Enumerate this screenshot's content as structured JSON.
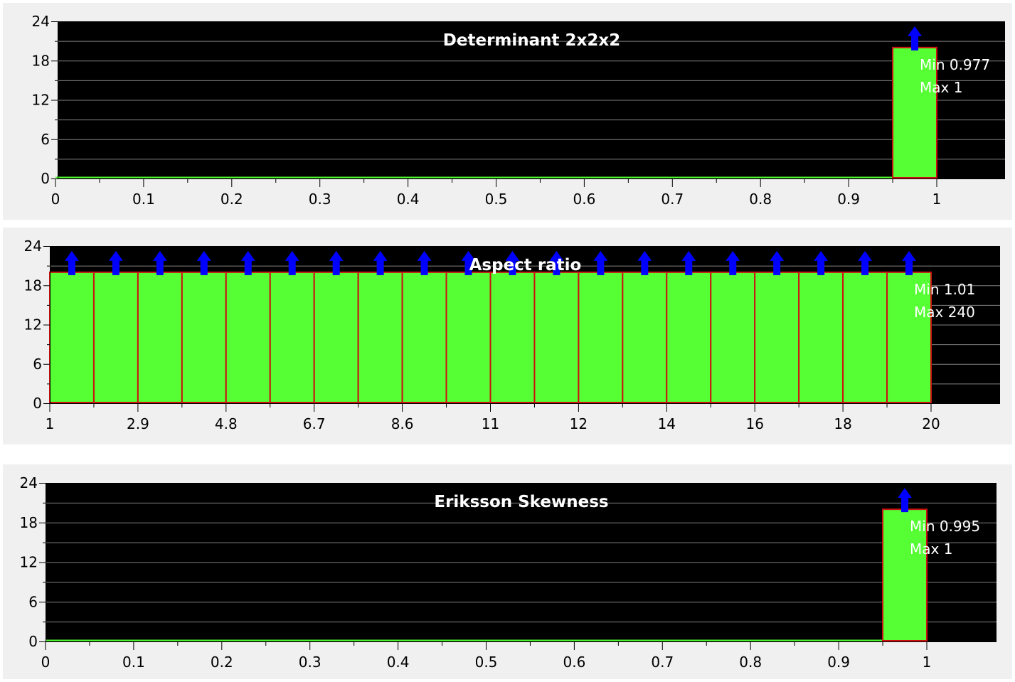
{
  "colors": {
    "panel_background": "#f0f0f0",
    "plot_background": "#000000",
    "gridline": "#808080",
    "bar_fill": "#55ff33",
    "bar_border": "#cc1111",
    "overflow_arrow": "#0000ff",
    "text_on_plot": "#ffffff",
    "axis": "#000000"
  },
  "chart_data": [
    {
      "type": "bar",
      "title": "Determinant 2x2x2",
      "xlabel": "",
      "ylabel": "",
      "xlim": [
        0,
        1.08
      ],
      "ylim": [
        0,
        24
      ],
      "y_ticks": [
        "0",
        "6",
        "12",
        "18",
        "24"
      ],
      "x_ticks": [
        {
          "value": 0,
          "label": "0"
        },
        {
          "value": 0.1,
          "label": "0.1"
        },
        {
          "value": 0.2,
          "label": "0.2"
        },
        {
          "value": 0.3,
          "label": "0.3"
        },
        {
          "value": 0.4,
          "label": "0.4"
        },
        {
          "value": 0.5,
          "label": "0.5"
        },
        {
          "value": 0.6,
          "label": "0.6"
        },
        {
          "value": 0.7,
          "label": "0.7"
        },
        {
          "value": 0.8,
          "label": "0.8"
        },
        {
          "value": 0.9,
          "label": "0.9"
        },
        {
          "value": 1,
          "label": "1"
        }
      ],
      "bins": [
        {
          "x0": 0.95,
          "x1": 1.0,
          "value": 20,
          "overflow": true
        }
      ],
      "baseline": {
        "x0": 0,
        "x1": 0.95
      },
      "grid": true,
      "legend": "none",
      "stats": {
        "min_label": "Min 0.977",
        "max_label": "Max 1"
      }
    },
    {
      "type": "bar",
      "title": "Aspect ratio",
      "xlabel": "",
      "ylabel": "",
      "xlim": [
        0,
        21.6
      ],
      "ylim": [
        0,
        24
      ],
      "y_ticks": [
        "0",
        "6",
        "12",
        "18",
        "24"
      ],
      "x_ticks": [
        {
          "value": 0,
          "label": "1"
        },
        {
          "value": 2,
          "label": "2.9"
        },
        {
          "value": 4,
          "label": "4.8"
        },
        {
          "value": 6,
          "label": "6.7"
        },
        {
          "value": 8,
          "label": "8.6"
        },
        {
          "value": 10,
          "label": "11"
        },
        {
          "value": 12,
          "label": "12"
        },
        {
          "value": 14,
          "label": "14"
        },
        {
          "value": 16,
          "label": "16"
        },
        {
          "value": 18,
          "label": "18"
        },
        {
          "value": 20,
          "label": "20"
        }
      ],
      "bins": [
        {
          "x0": 0,
          "x1": 1,
          "value": 20,
          "overflow": true
        },
        {
          "x0": 1,
          "x1": 2,
          "value": 20,
          "overflow": true
        },
        {
          "x0": 2,
          "x1": 3,
          "value": 20,
          "overflow": true
        },
        {
          "x0": 3,
          "x1": 4,
          "value": 20,
          "overflow": true
        },
        {
          "x0": 4,
          "x1": 5,
          "value": 20,
          "overflow": true
        },
        {
          "x0": 5,
          "x1": 6,
          "value": 20,
          "overflow": true
        },
        {
          "x0": 6,
          "x1": 7,
          "value": 20,
          "overflow": true
        },
        {
          "x0": 7,
          "x1": 8,
          "value": 20,
          "overflow": true
        },
        {
          "x0": 8,
          "x1": 9,
          "value": 20,
          "overflow": true
        },
        {
          "x0": 9,
          "x1": 10,
          "value": 20,
          "overflow": true
        },
        {
          "x0": 10,
          "x1": 11,
          "value": 20,
          "overflow": true
        },
        {
          "x0": 11,
          "x1": 12,
          "value": 20,
          "overflow": true
        },
        {
          "x0": 12,
          "x1": 13,
          "value": 20,
          "overflow": true
        },
        {
          "x0": 13,
          "x1": 14,
          "value": 20,
          "overflow": true
        },
        {
          "x0": 14,
          "x1": 15,
          "value": 20,
          "overflow": true
        },
        {
          "x0": 15,
          "x1": 16,
          "value": 20,
          "overflow": true
        },
        {
          "x0": 16,
          "x1": 17,
          "value": 20,
          "overflow": true
        },
        {
          "x0": 17,
          "x1": 18,
          "value": 20,
          "overflow": true
        },
        {
          "x0": 18,
          "x1": 19,
          "value": 20,
          "overflow": true
        },
        {
          "x0": 19,
          "x1": 20,
          "value": 20,
          "overflow": true
        }
      ],
      "baseline": null,
      "grid": true,
      "legend": "none",
      "stats": {
        "min_label": "Min 1.01",
        "max_label": "Max 240"
      }
    },
    {
      "type": "bar",
      "title": "Eriksson Skewness",
      "xlabel": "",
      "ylabel": "",
      "xlim": [
        0,
        1.08
      ],
      "ylim": [
        0,
        24
      ],
      "y_ticks": [
        "0",
        "6",
        "12",
        "18",
        "24"
      ],
      "x_ticks": [
        {
          "value": 0,
          "label": "0"
        },
        {
          "value": 0.1,
          "label": "0.1"
        },
        {
          "value": 0.2,
          "label": "0.2"
        },
        {
          "value": 0.3,
          "label": "0.3"
        },
        {
          "value": 0.4,
          "label": "0.4"
        },
        {
          "value": 0.5,
          "label": "0.5"
        },
        {
          "value": 0.6,
          "label": "0.6"
        },
        {
          "value": 0.7,
          "label": "0.7"
        },
        {
          "value": 0.8,
          "label": "0.8"
        },
        {
          "value": 0.9,
          "label": "0.9"
        },
        {
          "value": 1,
          "label": "1"
        }
      ],
      "bins": [
        {
          "x0": 0.95,
          "x1": 1.0,
          "value": 20,
          "overflow": true
        }
      ],
      "baseline": {
        "x0": 0,
        "x1": 0.95
      },
      "grid": true,
      "legend": "none",
      "stats": {
        "min_label": "Min 0.995",
        "max_label": "Max 1"
      }
    }
  ]
}
